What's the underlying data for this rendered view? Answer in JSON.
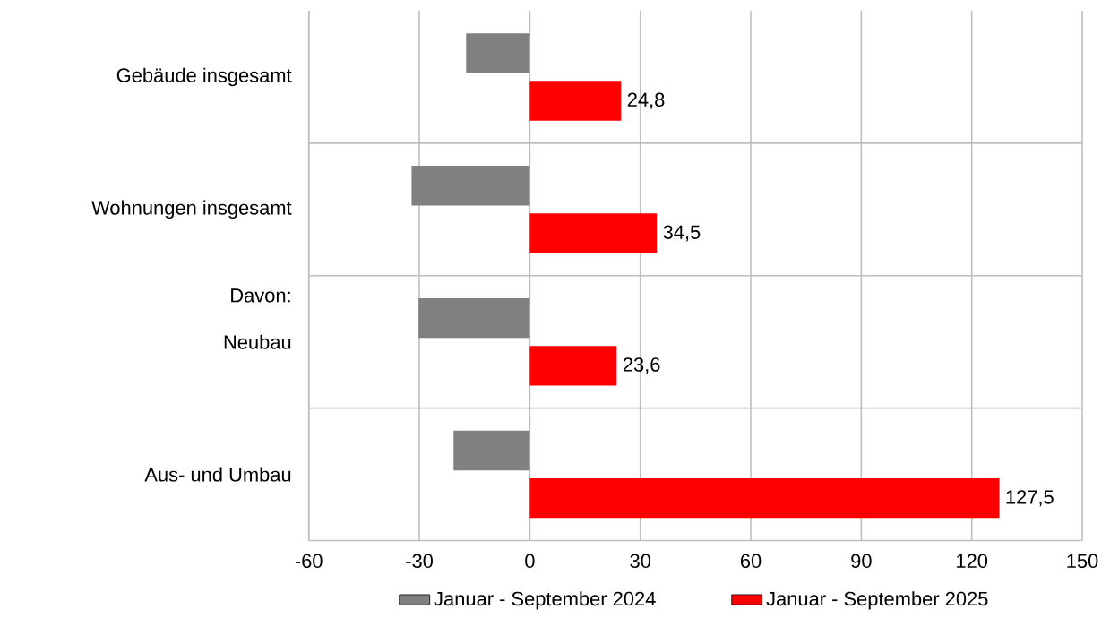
{
  "chart_data": {
    "type": "bar",
    "orientation": "horizontal",
    "categories": [
      "Gebäude insgesamt",
      "Wohnungen insgesamt",
      "Neubau",
      "Aus- und Umbau"
    ],
    "series": [
      {
        "name": "Januar - September 2024",
        "color": "#808080",
        "values": [
          -17.3,
          -32.1,
          -30.2,
          -20.7
        ]
      },
      {
        "name": "Januar - September 2025",
        "color": "#ff0000",
        "values": [
          24.8,
          34.5,
          23.6,
          127.5
        ],
        "value_labels": [
          "24,8",
          "34,5",
          "23,6",
          "127,5"
        ]
      }
    ],
    "annotations": [
      "Davon:"
    ],
    "xlim": [
      -60,
      150
    ],
    "xticks": [
      -60,
      -30,
      0,
      30,
      60,
      90,
      120,
      150
    ],
    "grid": true,
    "legend": "bottom"
  }
}
